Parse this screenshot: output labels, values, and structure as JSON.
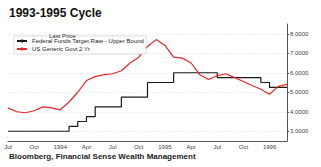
{
  "chart_data": {
    "type": "line",
    "title": "1993-1995 Cycle",
    "source": "Bloomberg, Financial Sense Wealth Management",
    "legend_title": "Last Price",
    "categories": [
      "Jul",
      null,
      null,
      "Oct",
      null,
      null,
      "1994",
      null,
      null,
      "Apr",
      null,
      null,
      "Jul",
      null,
      null,
      "Oct",
      null,
      null,
      "1995",
      null,
      null,
      "Apr",
      null,
      null,
      "Jul",
      null,
      null,
      "Oct",
      null,
      null,
      "1996",
      null,
      null
    ],
    "series": [
      {
        "name": "Federal Funds Target Rate - Upper Bound",
        "color": "#1a1a1a",
        "line_style": "step",
        "values": [
          3,
          3,
          3,
          3,
          3,
          3,
          3,
          3.25,
          3.5,
          3.75,
          4.25,
          4.25,
          4.25,
          4.75,
          4.75,
          4.75,
          5.5,
          5.5,
          5.5,
          6,
          6,
          6,
          6,
          6,
          5.75,
          5.75,
          5.75,
          5.75,
          5.75,
          5.5,
          5.25,
          5.25,
          5.25
        ]
      },
      {
        "name": "US Generic Govt 2 Yr",
        "color": "#e8262a",
        "line_style": "solid",
        "values": [
          4.2,
          4.0,
          3.95,
          4.05,
          4.25,
          4.2,
          4.1,
          4.5,
          5.0,
          5.6,
          5.8,
          5.9,
          5.95,
          6.1,
          6.5,
          6.8,
          7.35,
          7.7,
          7.4,
          6.8,
          6.75,
          6.5,
          5.9,
          5.65,
          5.85,
          5.95,
          5.75,
          5.55,
          5.35,
          5.15,
          4.9,
          5.3,
          5.4
        ]
      }
    ],
    "ylim": [
      2.5,
      8.5
    ],
    "yticks": [
      {
        "value": 3,
        "label": "3.0000"
      },
      {
        "value": 4,
        "label": "4.0000"
      },
      {
        "value": 5,
        "label": "5.0000"
      },
      {
        "value": 6,
        "label": "6.0000"
      },
      {
        "value": 7,
        "label": "7.0000"
      },
      {
        "value": 8,
        "label": "8.0000"
      }
    ],
    "grid": true,
    "legend": "top-left"
  }
}
